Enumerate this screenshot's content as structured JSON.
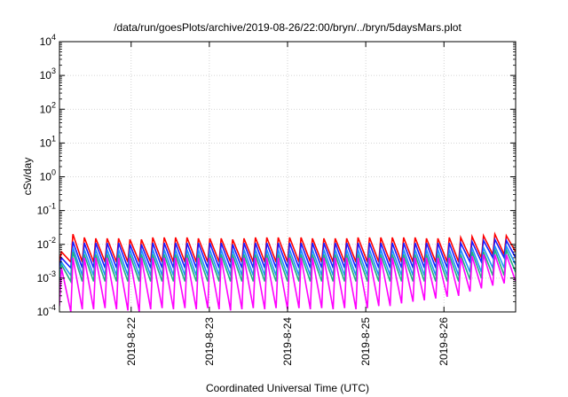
{
  "chart_data": {
    "type": "line",
    "title": "/data/run/goesPlots/archive/2019-08-26/22:00/bryn/../bryn/5daysMars.plot",
    "xlabel": "Coordinated Universal Time (UTC)",
    "ylabel": "cSv/day",
    "y_scale": "log",
    "ylim": [
      0.0001,
      10000
    ],
    "xlim": [
      "2019-08-21 02:00",
      "2019-08-26 22:00"
    ],
    "x_ticks": [
      {
        "label": "2019-8-22",
        "date": "2019-08-22 00:00"
      },
      {
        "label": "2019-8-23",
        "date": "2019-08-23 00:00"
      },
      {
        "label": "2019-8-24",
        "date": "2019-08-24 00:00"
      },
      {
        "label": "2019-8-25",
        "date": "2019-08-25 00:00"
      },
      {
        "label": "2019-8-26",
        "date": "2019-08-26 00:00"
      }
    ],
    "y_ticks": [
      {
        "base": "10",
        "exp": "4",
        "value": 10000
      },
      {
        "base": "10",
        "exp": "3",
        "value": 1000
      },
      {
        "base": "10",
        "exp": "2",
        "value": 100
      },
      {
        "base": "10",
        "exp": "1",
        "value": 10
      },
      {
        "base": "10",
        "exp": "0",
        "value": 1
      },
      {
        "base": "10",
        "exp": "-1",
        "value": 0.1
      },
      {
        "base": "10",
        "exp": "-2",
        "value": 0.01
      },
      {
        "base": "10",
        "exp": "-3",
        "value": 0.001
      },
      {
        "base": "10",
        "exp": "-4",
        "value": 0.0001
      }
    ],
    "grid": true,
    "series": [
      {
        "color": "#ff0000",
        "start": "2019-08-21 02:00",
        "period_hours": 3.5,
        "peaks": [
          0.006,
          0.02,
          0.016,
          0.015,
          0.015,
          0.015,
          0.014,
          0.014,
          0.016,
          0.016,
          0.016,
          0.016,
          0.015,
          0.015,
          0.015,
          0.014,
          0.015,
          0.016,
          0.016,
          0.016,
          0.016,
          0.016,
          0.015,
          0.015,
          0.015,
          0.015,
          0.016,
          0.016,
          0.016,
          0.016,
          0.016,
          0.016,
          0.015,
          0.015,
          0.016,
          0.016,
          0.017,
          0.018,
          0.02,
          0.018,
          0.021
        ],
        "troughs": [
          0.003,
          0.003,
          0.003,
          0.003,
          0.003,
          0.003,
          0.003,
          0.003,
          0.003,
          0.003,
          0.003,
          0.003,
          0.003,
          0.003,
          0.003,
          0.003,
          0.003,
          0.003,
          0.003,
          0.003,
          0.003,
          0.003,
          0.003,
          0.003,
          0.003,
          0.003,
          0.003,
          0.003,
          0.003,
          0.003,
          0.003,
          0.003,
          0.003,
          0.003,
          0.003,
          0.003,
          0.004,
          0.004,
          0.005,
          0.005,
          0.006
        ]
      },
      {
        "color": "#1a1aff",
        "start": "2019-08-21 02:00",
        "period_hours": 3.5,
        "peaks": [
          0.004,
          0.012,
          0.011,
          0.011,
          0.011,
          0.011,
          0.01,
          0.01,
          0.011,
          0.011,
          0.011,
          0.011,
          0.011,
          0.011,
          0.011,
          0.01,
          0.011,
          0.011,
          0.011,
          0.011,
          0.011,
          0.011,
          0.011,
          0.011,
          0.011,
          0.011,
          0.011,
          0.011,
          0.011,
          0.011,
          0.011,
          0.011,
          0.011,
          0.011,
          0.011,
          0.011,
          0.012,
          0.013,
          0.014,
          0.013,
          0.015
        ],
        "troughs": [
          0.002,
          0.002,
          0.002,
          0.002,
          0.002,
          0.002,
          0.002,
          0.002,
          0.002,
          0.002,
          0.002,
          0.002,
          0.002,
          0.002,
          0.002,
          0.002,
          0.002,
          0.002,
          0.002,
          0.002,
          0.002,
          0.002,
          0.002,
          0.002,
          0.002,
          0.002,
          0.002,
          0.002,
          0.002,
          0.002,
          0.002,
          0.002,
          0.002,
          0.002,
          0.002,
          0.002,
          0.003,
          0.003,
          0.004,
          0.004,
          0.004
        ]
      },
      {
        "color": "#1f8fff",
        "start": "2019-08-21 02:00",
        "period_hours": 3.5,
        "peaks": [
          0.003,
          0.008,
          0.007,
          0.007,
          0.007,
          0.007,
          0.007,
          0.007,
          0.007,
          0.007,
          0.007,
          0.007,
          0.007,
          0.007,
          0.007,
          0.007,
          0.007,
          0.007,
          0.007,
          0.007,
          0.007,
          0.007,
          0.007,
          0.007,
          0.007,
          0.007,
          0.007,
          0.007,
          0.007,
          0.007,
          0.007,
          0.007,
          0.007,
          0.007,
          0.007,
          0.007,
          0.008,
          0.008,
          0.009,
          0.009,
          0.01
        ],
        "troughs": [
          0.0012,
          0.0012,
          0.0012,
          0.0012,
          0.0012,
          0.0012,
          0.0012,
          0.0012,
          0.0012,
          0.0012,
          0.0012,
          0.0012,
          0.0012,
          0.0012,
          0.0012,
          0.0012,
          0.0012,
          0.0012,
          0.0012,
          0.0012,
          0.0012,
          0.0012,
          0.0012,
          0.0012,
          0.0012,
          0.0012,
          0.0012,
          0.0012,
          0.0012,
          0.0012,
          0.0012,
          0.0012,
          0.0012,
          0.0012,
          0.0012,
          0.0012,
          0.0015,
          0.0015,
          0.002,
          0.002,
          0.0025
        ]
      },
      {
        "color": "#20b080",
        "start": "2019-08-21 02:00",
        "period_hours": 3.5,
        "peaks": [
          0.0025,
          0.006,
          0.005,
          0.005,
          0.005,
          0.005,
          0.005,
          0.005,
          0.005,
          0.005,
          0.005,
          0.005,
          0.005,
          0.005,
          0.005,
          0.005,
          0.005,
          0.005,
          0.005,
          0.005,
          0.005,
          0.005,
          0.005,
          0.005,
          0.005,
          0.005,
          0.005,
          0.005,
          0.005,
          0.005,
          0.005,
          0.005,
          0.005,
          0.005,
          0.005,
          0.005,
          0.006,
          0.006,
          0.007,
          0.007,
          0.008
        ],
        "troughs": [
          0.0008,
          0.0008,
          0.0008,
          0.0008,
          0.0008,
          0.0008,
          0.0008,
          0.0008,
          0.0008,
          0.0008,
          0.0008,
          0.0008,
          0.0008,
          0.0008,
          0.0008,
          0.0008,
          0.0008,
          0.0008,
          0.0008,
          0.0008,
          0.0008,
          0.0008,
          0.0008,
          0.0008,
          0.0008,
          0.0008,
          0.0008,
          0.0008,
          0.0008,
          0.0008,
          0.0008,
          0.0008,
          0.0008,
          0.0008,
          0.0008,
          0.0008,
          0.0009,
          0.001,
          0.0012,
          0.0012,
          0.0015
        ]
      },
      {
        "color": "#ff00ff",
        "start": "2019-08-21 02:00",
        "period_hours": 3.5,
        "peaks": [
          0.002,
          0.004,
          0.004,
          0.004,
          0.004,
          0.004,
          0.004,
          0.004,
          0.004,
          0.004,
          0.004,
          0.004,
          0.004,
          0.004,
          0.004,
          0.004,
          0.004,
          0.004,
          0.004,
          0.004,
          0.004,
          0.004,
          0.004,
          0.004,
          0.004,
          0.004,
          0.004,
          0.004,
          0.004,
          0.004,
          0.004,
          0.004,
          0.004,
          0.004,
          0.004,
          0.004,
          0.0045,
          0.005,
          0.005,
          0.005,
          0.006
        ],
        "troughs": [
          0.00015,
          0.0001,
          0.00012,
          0.00012,
          0.00013,
          0.00012,
          0.00011,
          0.0001,
          0.00012,
          0.00013,
          0.00012,
          0.00013,
          0.00012,
          0.00013,
          0.00012,
          0.00011,
          0.00012,
          0.00013,
          0.00012,
          0.00013,
          0.00012,
          0.00013,
          0.00012,
          0.00013,
          0.00012,
          0.00013,
          0.00012,
          0.00013,
          0.00015,
          0.00015,
          0.00018,
          0.0002,
          0.00022,
          0.00025,
          0.00028,
          0.0003,
          0.0004,
          0.0005,
          0.0006,
          0.0007,
          0.0008
        ]
      }
    ]
  }
}
